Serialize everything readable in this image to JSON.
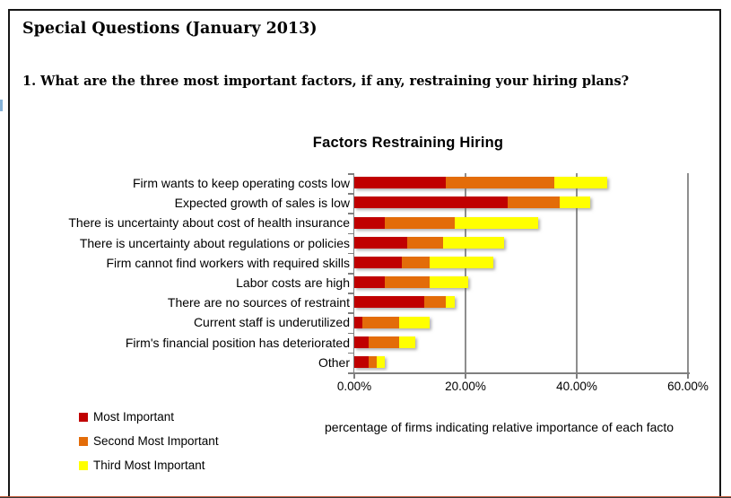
{
  "page": {
    "header_title": "Special Questions (January 2013)",
    "question": "1. What are the three most important factors, if any, restraining your hiring plans?"
  },
  "chart": {
    "title": "Factors Restraining Hiring",
    "caption": "percentage of firms indicating relative importance of each facto"
  },
  "chart_data": {
    "type": "bar",
    "orientation": "horizontal",
    "stacked": true,
    "title": "Factors Restraining Hiring",
    "categories": [
      "Firm wants to keep operating costs low",
      "Expected growth of sales is low",
      "There is uncertainty about  cost of health insurance",
      "There is uncertainty about  regulations or policies",
      "Firm cannot find workers with required skills",
      "Labor costs are high",
      "There are no sources of restraint",
      "Current staff is underutilized",
      "Firm's financial position has deteriorated",
      "Other"
    ],
    "series": [
      {
        "name": "Most Important",
        "color": "#c00000",
        "values": [
          16.5,
          27.5,
          5.5,
          9.5,
          8.5,
          5.5,
          12.5,
          1.5,
          2.5,
          2.5
        ]
      },
      {
        "name": "Second Most Important",
        "color": "#e36c09",
        "values": [
          19.5,
          9.5,
          12.5,
          6.5,
          5.0,
          8.0,
          4.0,
          6.5,
          5.5,
          1.5
        ]
      },
      {
        "name": "Third Most Important",
        "color": "#ffff00",
        "values": [
          9.5,
          5.5,
          15.0,
          11.0,
          11.5,
          7.0,
          1.5,
          5.5,
          3.0,
          1.5
        ]
      }
    ],
    "xlabel": "percentage of firms indicating relative importance of each facto",
    "xlim": [
      0,
      60
    ],
    "x_tick_step": 20,
    "x_tick_labels": [
      "0.00%",
      "20.00%",
      "40.00%",
      "60.00%"
    ],
    "gridlines": true,
    "legend_position": "bottom-left"
  }
}
